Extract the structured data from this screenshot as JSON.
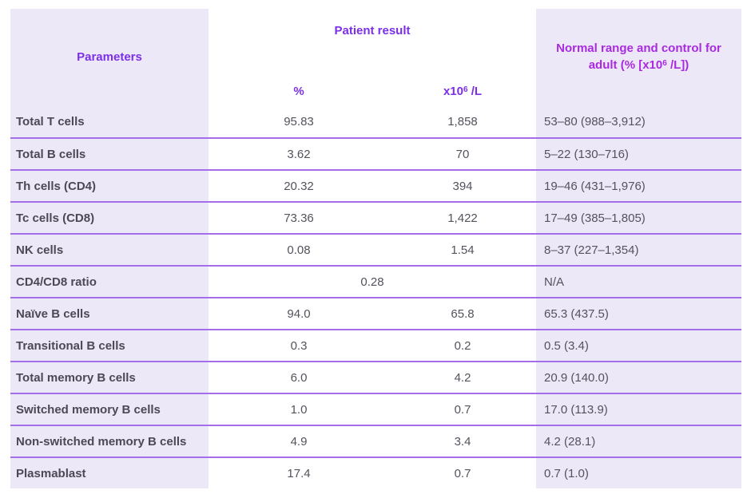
{
  "table": {
    "headers": {
      "parameters": "Parameters",
      "patient_result": "Patient result",
      "pct": "%",
      "abs_pre": "x10",
      "abs_sup": "6",
      "abs_post": " /L",
      "normal_pre": "Normal range and control for adult  (% [x10",
      "normal_sup": "6",
      "normal_post": " /L])"
    },
    "rows": [
      {
        "param": "Total T cells",
        "pct": "95.83",
        "abs": "1,858",
        "normal": "53–80 (988–3,912)"
      },
      {
        "param": "Total B cells",
        "pct": "3.62",
        "abs": "70",
        "normal": "5–22 (130–716)"
      },
      {
        "param": "Th cells (CD4)",
        "pct": "20.32",
        "abs": "394",
        "normal": "19–46 (431–1,976)"
      },
      {
        "param": "Tc cells (CD8)",
        "pct": "73.36",
        "abs": "1,422",
        "normal": "17–49 (385–1,805)"
      },
      {
        "param": "NK cells",
        "pct": "0.08",
        "abs": "1.54",
        "normal": "8–37 (227–1,354)"
      },
      {
        "param": "CD4/CD8 ratio",
        "span": "0.28",
        "normal": "N/A"
      },
      {
        "param": "Naïve B cells",
        "pct": "94.0",
        "abs": "65.8",
        "normal": "65.3 (437.5)"
      },
      {
        "param": "Transitional B cells",
        "pct": "0.3",
        "abs": "0.2",
        "normal": "0.5 (3.4)"
      },
      {
        "param": "Total memory B cells",
        "pct": "6.0",
        "abs": "4.2",
        "normal": "20.9 (140.0)"
      },
      {
        "param": "Switched memory B cells",
        "pct": "1.0",
        "abs": "0.7",
        "normal": "17.0 (113.9)"
      },
      {
        "param": "Non-switched memory B cells",
        "pct": "4.9",
        "abs": "3.4",
        "normal": "4.2 (28.1)"
      },
      {
        "param": "Plasmablast",
        "pct": "17.4",
        "abs": "0.7",
        "normal": "0.7 (1.0)"
      }
    ]
  },
  "colors": {
    "header_violet": "#7C2FE8",
    "header_magenta": "#A82BDF",
    "cell_lavender": "#EDE8F8",
    "row_divider": "#A36FE9",
    "param_text": "#4B4954",
    "value_text": "#54525C"
  }
}
